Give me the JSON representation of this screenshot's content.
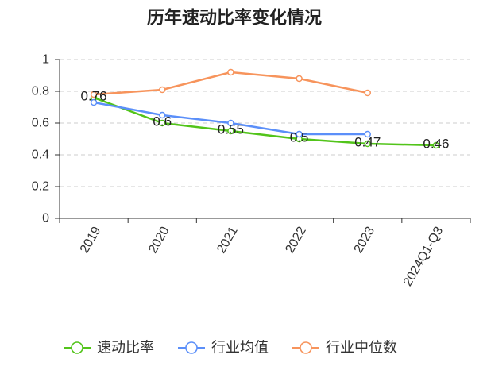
{
  "chart_data": {
    "type": "line",
    "title": "历年速动比率变化情况",
    "xlabel": "",
    "ylabel": "",
    "categories": [
      "2019",
      "2020",
      "2021",
      "2022",
      "2023",
      "2024Q1-Q3"
    ],
    "ylim": [
      0,
      1
    ],
    "y_ticks": [
      0,
      0.2,
      0.4,
      0.6,
      0.8,
      1
    ],
    "y_tick_labels": [
      "0",
      "0.2",
      "0.4",
      "0.6",
      "0.8",
      "1"
    ],
    "grid": true,
    "legend": "bottom",
    "series": [
      {
        "name": "速动比率",
        "color": "#52c41a",
        "values": [
          0.76,
          0.6,
          0.55,
          0.5,
          0.47,
          0.46
        ],
        "data_labels": [
          "0.76",
          "0.6",
          "0.55",
          "0.5",
          "0.47",
          "0.46"
        ]
      },
      {
        "name": "行业均值",
        "color": "#5b8ff9",
        "values": [
          0.73,
          0.65,
          0.6,
          0.53,
          0.53,
          null
        ]
      },
      {
        "name": "行业中位数",
        "color": "#f7945c",
        "values": [
          0.78,
          0.81,
          0.92,
          0.88,
          0.79,
          null
        ]
      }
    ]
  }
}
